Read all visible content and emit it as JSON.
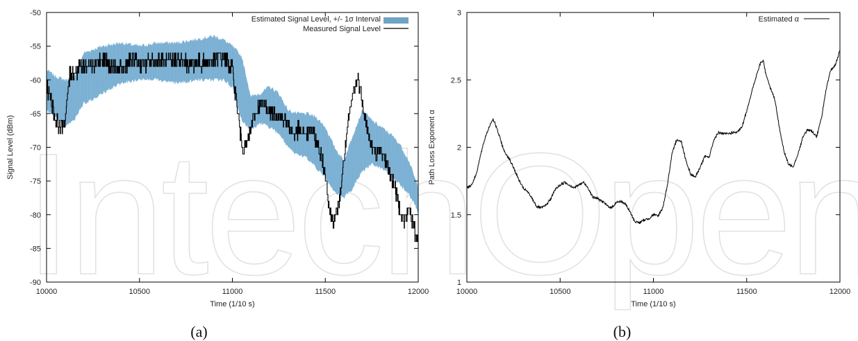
{
  "watermark": "IntechOpen",
  "colors": {
    "band": "#80b4d6",
    "band_legend": "#6fa3c4",
    "line": "#000000",
    "frame": "#000000"
  },
  "chart_data": [
    {
      "type": "area",
      "caption": "(a)",
      "xlabel": "Time (1/10 s)",
      "ylabel": "Signal Level (dBm)",
      "xlim": [
        10000,
        12000
      ],
      "ylim": [
        -90,
        -50
      ],
      "xticks": [
        10000,
        10500,
        11000,
        11500,
        12000
      ],
      "yticks": [
        -50,
        -55,
        -60,
        -65,
        -70,
        -75,
        -80,
        -85,
        -90
      ],
      "legend_position": "top-right",
      "series": [
        {
          "name": "Estimated Signal Level, +/- 1σ Interval",
          "kind": "band",
          "x": [
            10000,
            10050,
            10100,
            10150,
            10200,
            10300,
            10400,
            10500,
            10600,
            10700,
            10800,
            10900,
            10950,
            11000,
            11050,
            11100,
            11150,
            11200,
            11250,
            11300,
            11350,
            11400,
            11450,
            11500,
            11550,
            11600,
            11650,
            11700,
            11750,
            11800,
            11850,
            11900,
            11950,
            12000
          ],
          "upper": [
            -58.5,
            -59.5,
            -60,
            -59.5,
            -56,
            -55,
            -54.5,
            -55,
            -54.5,
            -54.5,
            -54,
            -53.5,
            -54,
            -55,
            -56.5,
            -62.5,
            -62,
            -61,
            -62,
            -64.5,
            -65,
            -65,
            -65.5,
            -67,
            -70,
            -72,
            -68,
            -64.5,
            -66,
            -67,
            -68,
            -69.5,
            -72,
            -76
          ],
          "lower": [
            -64.5,
            -65.5,
            -67,
            -66,
            -63.5,
            -62,
            -60.5,
            -60,
            -60,
            -60.5,
            -60,
            -60,
            -60,
            -61,
            -66,
            -67.5,
            -66.5,
            -67,
            -68,
            -70,
            -71,
            -71.5,
            -73,
            -74.5,
            -76.5,
            -77.5,
            -76,
            -73.5,
            -72.5,
            -73,
            -74,
            -75.5,
            -77,
            -79.5
          ]
        },
        {
          "name": "Measured Signal Level",
          "kind": "line",
          "x": [
            10000,
            10025,
            10050,
            10075,
            10100,
            10125,
            10150,
            10175,
            10200,
            10250,
            10300,
            10350,
            10400,
            10450,
            10500,
            10550,
            10600,
            10650,
            10700,
            10750,
            10800,
            10850,
            10900,
            10950,
            10975,
            11000,
            11025,
            11050,
            11075,
            11100,
            11125,
            11150,
            11175,
            11200,
            11250,
            11300,
            11325,
            11350,
            11400,
            11425,
            11450,
            11475,
            11500,
            11525,
            11550,
            11575,
            11600,
            11625,
            11650,
            11675,
            11700,
            11725,
            11750,
            11775,
            11800,
            11825,
            11850,
            11875,
            11900,
            11925,
            11950,
            11975,
            12000
          ],
          "y": [
            -61,
            -63,
            -66,
            -67,
            -66,
            -59,
            -59,
            -58,
            -58,
            -57.5,
            -57,
            -58,
            -58.5,
            -57,
            -57.5,
            -57.5,
            -57,
            -57.5,
            -57,
            -57.5,
            -57.5,
            -57.5,
            -57,
            -56.5,
            -57.5,
            -58.5,
            -64,
            -69.5,
            -70,
            -67,
            -65,
            -63.5,
            -64,
            -64.5,
            -65,
            -66.5,
            -68,
            -67.5,
            -68,
            -67.5,
            -69,
            -71,
            -74,
            -80,
            -81,
            -78,
            -72,
            -66,
            -62,
            -60,
            -63,
            -67.5,
            -70,
            -71,
            -70.5,
            -72,
            -74,
            -76,
            -79,
            -81,
            -79,
            -82,
            -84
          ]
        }
      ]
    },
    {
      "type": "line",
      "caption": "(b)",
      "xlabel": "Time (1/10 s)",
      "ylabel": "Path Loss Exponent α",
      "xlim": [
        10000,
        12000
      ],
      "ylim": [
        1,
        3
      ],
      "xticks": [
        10000,
        10500,
        11000,
        11500,
        12000
      ],
      "yticks": [
        1,
        1.5,
        2,
        2.5,
        3
      ],
      "legend_position": "top-right",
      "series": [
        {
          "name": "Estimated α",
          "x": [
            10000,
            10025,
            10050,
            10075,
            10100,
            10125,
            10140,
            10150,
            10175,
            10200,
            10225,
            10250,
            10275,
            10300,
            10325,
            10350,
            10375,
            10400,
            10425,
            10450,
            10475,
            10500,
            10525,
            10550,
            10575,
            10600,
            10625,
            10650,
            10675,
            10700,
            10725,
            10750,
            10775,
            10800,
            10825,
            10850,
            10875,
            10900,
            10925,
            10950,
            10975,
            11000,
            11025,
            11050,
            11075,
            11100,
            11125,
            11150,
            11175,
            11200,
            11225,
            11250,
            11275,
            11300,
            11325,
            11350,
            11375,
            11400,
            11425,
            11450,
            11475,
            11500,
            11525,
            11550,
            11575,
            11590,
            11600,
            11625,
            11650,
            11675,
            11700,
            11725,
            11750,
            11775,
            11800,
            11825,
            11850,
            11875,
            11900,
            11925,
            11950,
            11975,
            12000
          ],
          "y": [
            1.7,
            1.72,
            1.8,
            1.95,
            2.08,
            2.17,
            2.21,
            2.18,
            2.08,
            1.97,
            1.92,
            1.85,
            1.77,
            1.7,
            1.67,
            1.62,
            1.56,
            1.55,
            1.57,
            1.62,
            1.69,
            1.72,
            1.74,
            1.72,
            1.7,
            1.72,
            1.74,
            1.7,
            1.63,
            1.62,
            1.6,
            1.57,
            1.55,
            1.59,
            1.6,
            1.58,
            1.52,
            1.45,
            1.44,
            1.46,
            1.47,
            1.5,
            1.49,
            1.55,
            1.72,
            1.95,
            2.06,
            2.04,
            1.9,
            1.8,
            1.78,
            1.85,
            1.93,
            1.93,
            2.06,
            2.11,
            2.1,
            2.1,
            2.11,
            2.11,
            2.15,
            2.27,
            2.4,
            2.52,
            2.63,
            2.64,
            2.56,
            2.45,
            2.36,
            2.15,
            1.97,
            1.87,
            1.86,
            1.95,
            2.07,
            2.13,
            2.12,
            2.08,
            2.21,
            2.42,
            2.57,
            2.61,
            2.72
          ]
        }
      ]
    }
  ]
}
